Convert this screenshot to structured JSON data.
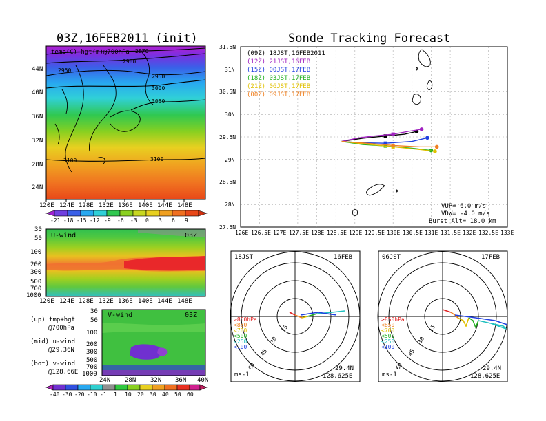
{
  "left_title": "03Z,16FEB2011 (init)",
  "right_title": "Sonde Tracking Forecast",
  "map_panel": {
    "label": "temp(C)+hgt(m)@700hPa",
    "lon_ticks": [
      "120E",
      "124E",
      "128E",
      "132E",
      "136E",
      "140E",
      "144E",
      "148E"
    ],
    "lat_ticks": [
      "24N",
      "28N",
      "32N",
      "36N",
      "40N",
      "44N"
    ],
    "contour_labels": [
      "2870",
      "2900",
      "2950",
      "2950",
      "3000",
      "3050",
      "3100",
      "3100"
    ],
    "colorbar_ticks": [
      "-21",
      "-18",
      "-15",
      "-12",
      "-9",
      "-6",
      "-3",
      "0",
      "3",
      "6",
      "9"
    ]
  },
  "u_panel": {
    "label": "U-wind",
    "time": "03Z",
    "p_ticks": [
      "30",
      "50",
      "100",
      "200",
      "300",
      "500",
      "700",
      "1000"
    ],
    "lon_ticks": [
      "120E",
      "124E",
      "128E",
      "132E",
      "136E",
      "140E",
      "144E",
      "148E"
    ]
  },
  "v_panel": {
    "label": "V-wind",
    "time": "03Z",
    "p_ticks": [
      "30",
      "50",
      "100",
      "200",
      "300",
      "500",
      "700",
      "1000"
    ],
    "lat_ticks": [
      "24N",
      "28N",
      "32N",
      "36N",
      "40N"
    ],
    "colorbar_ticks": [
      "-40",
      "-30",
      "-20",
      "-10",
      "-1",
      "1",
      "10",
      "20",
      "30",
      "40",
      "50",
      "60"
    ]
  },
  "legend_notes": {
    "up1": "(up) tmp+hgt",
    "up2": "@700hPa",
    "mid1": "(mid) u-wind",
    "mid2": "@29.36N",
    "bot1": "(bot) v-wind",
    "bot2": "@128.66E"
  },
  "track_panel": {
    "legend": [
      {
        "text": "(09Z) 18JST,16FEB2011",
        "color": "#000000"
      },
      {
        "text": "(12Z) 21JST,16FEB",
        "color": "#a020c0"
      },
      {
        "text": "(15Z) 00JST,17FEB",
        "color": "#2040e0"
      },
      {
        "text": "(18Z) 03JST,17FEB",
        "color": "#20b020"
      },
      {
        "text": "(21Z) 06JST,17FEB",
        "color": "#e0c000"
      },
      {
        "text": "(00Z) 09JST,17FEB",
        "color": "#f08020"
      }
    ],
    "lat_ticks": [
      "31.5N",
      "31N",
      "30.5N",
      "30N",
      "29.5N",
      "29N",
      "28.5N",
      "28N",
      "27.5N"
    ],
    "lon_ticks": [
      "126E",
      "126.5E",
      "127E",
      "127.5E",
      "128E",
      "128.5E",
      "129E",
      "129.5E",
      "130E",
      "130.5E",
      "131E",
      "131.5E",
      "132E",
      "132.5E",
      "133E"
    ],
    "vup": "VUP= 6.0 m/s",
    "vdw": "VDW= -4.0 m/s",
    "burst": "Burst Alt= 18.0 km"
  },
  "hodo_left": {
    "time": "18JST",
    "date": "16FEB",
    "ring_labels": [
      "15",
      "30",
      "45",
      "60"
    ],
    "unit": "ms-1",
    "lat": "29.4N",
    "lon": "128.625E",
    "levels": [
      {
        "text": "≥850hPa",
        "color": "#e02020"
      },
      {
        "text": "<850",
        "color": "#f08020"
      },
      {
        "text": "<700",
        "color": "#e0c000"
      },
      {
        "text": "<500",
        "color": "#20b020"
      },
      {
        "text": "<250",
        "color": "#20c0c0"
      },
      {
        "text": "<100",
        "color": "#2040e0"
      }
    ]
  },
  "hodo_right": {
    "time": "06JST",
    "date": "17FEB",
    "ring_labels": [
      "15",
      "30",
      "45",
      "60"
    ],
    "unit": "ms-1",
    "lat": "29.4N",
    "lon": "128.625E",
    "levels": [
      {
        "text": "≥850hPa",
        "color": "#e02020"
      },
      {
        "text": "<850",
        "color": "#f08020"
      },
      {
        "text": "<700",
        "color": "#e0c000"
      },
      {
        "text": "<500",
        "color": "#20b020"
      },
      {
        "text": "<250",
        "color": "#20c0c0"
      },
      {
        "text": "<100",
        "color": "#2040e0"
      }
    ]
  },
  "chart_data": [
    {
      "type": "line",
      "title": "Sonde Tracking Forecast",
      "xlabel": "",
      "ylabel": "",
      "xlim": [
        126,
        133
      ],
      "ylim": [
        27.5,
        31.5
      ],
      "grid": true,
      "legend_placement": "top-left",
      "series": [
        {
          "name": "(09Z) 18JST,16FEB2011",
          "color": "#000000",
          "x": [
            128.65,
            129.2,
            129.8,
            130.3,
            130.62
          ],
          "y": [
            29.4,
            29.47,
            29.52,
            29.56,
            29.62
          ]
        },
        {
          "name": "(12Z) 21JST,16FEB",
          "color": "#a020c0",
          "x": [
            128.65,
            129.1,
            129.5,
            130.0,
            130.45,
            130.75
          ],
          "y": [
            29.4,
            29.48,
            29.52,
            29.56,
            29.63,
            29.67
          ]
        },
        {
          "name": "(15Z) 00JST,17FEB",
          "color": "#2040e0",
          "x": [
            128.65,
            129.2,
            129.8,
            130.5,
            130.9
          ],
          "y": [
            29.4,
            29.37,
            29.36,
            29.4,
            29.48
          ]
        },
        {
          "name": "(18Z) 03JST,17FEB",
          "color": "#20b020",
          "x": [
            128.65,
            129.2,
            129.8,
            130.5,
            131.0
          ],
          "y": [
            29.4,
            29.33,
            29.3,
            29.25,
            29.2
          ]
        },
        {
          "name": "(21Z) 06JST,17FEB",
          "color": "#e0c000",
          "x": [
            128.65,
            129.3,
            130.0,
            130.7,
            131.1
          ],
          "y": [
            29.4,
            29.34,
            29.28,
            29.22,
            29.18
          ]
        },
        {
          "name": "(00Z) 09JST,17FEB",
          "color": "#f08020",
          "x": [
            128.65,
            129.3,
            130.0,
            130.7,
            131.15
          ],
          "y": [
            29.4,
            29.36,
            29.31,
            29.28,
            29.28
          ]
        }
      ]
    }
  ]
}
